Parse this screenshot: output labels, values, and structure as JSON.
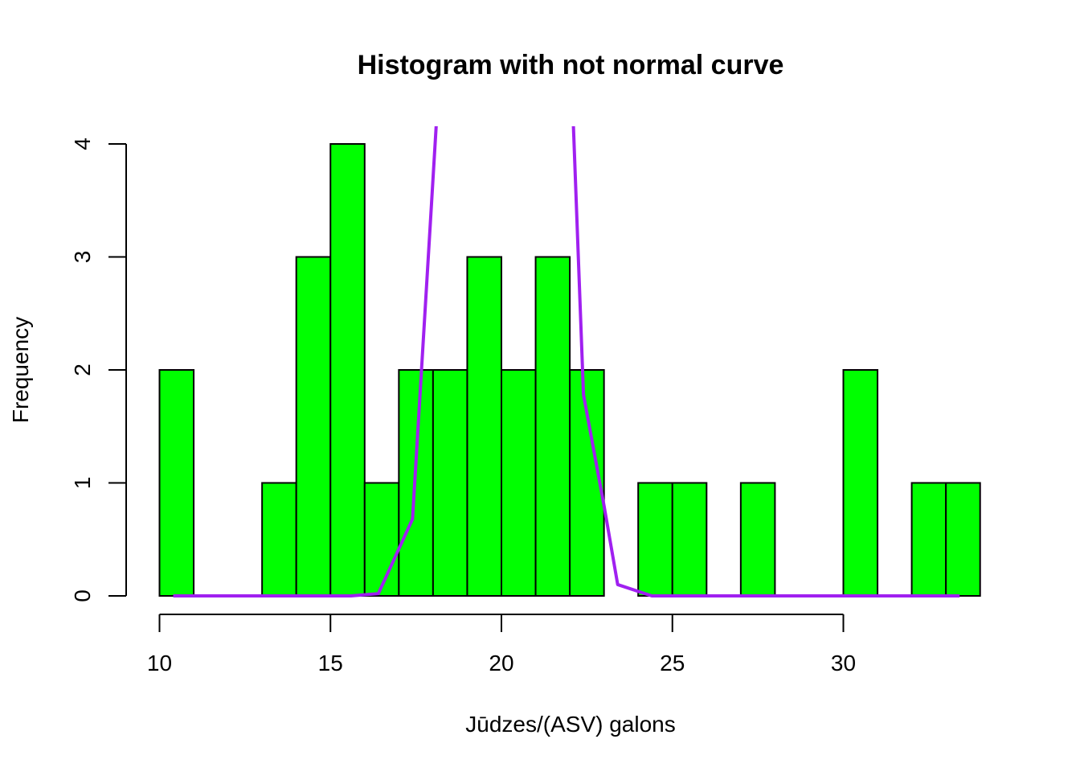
{
  "chart_data": {
    "type": "bar",
    "title": "Histogram with not normal curve",
    "xlabel": "Jūdzes/(ASV) galons",
    "ylabel": "Frequency",
    "x_ticks": [
      10,
      15,
      20,
      25,
      30
    ],
    "y_ticks": [
      0,
      1,
      2,
      3,
      4
    ],
    "xlim": [
      10,
      34
    ],
    "ylim": [
      0,
      4
    ],
    "bar_color": "#00ff00",
    "curve_color": "#a020f0",
    "grid": false,
    "bins": [
      {
        "x0": 10,
        "x1": 11,
        "count": 2
      },
      {
        "x0": 11,
        "x1": 12,
        "count": 0
      },
      {
        "x0": 12,
        "x1": 13,
        "count": 0
      },
      {
        "x0": 13,
        "x1": 14,
        "count": 1
      },
      {
        "x0": 14,
        "x1": 15,
        "count": 3
      },
      {
        "x0": 15,
        "x1": 16,
        "count": 4
      },
      {
        "x0": 16,
        "x1": 17,
        "count": 1
      },
      {
        "x0": 17,
        "x1": 18,
        "count": 2
      },
      {
        "x0": 18,
        "x1": 19,
        "count": 2
      },
      {
        "x0": 19,
        "x1": 20,
        "count": 3
      },
      {
        "x0": 20,
        "x1": 21,
        "count": 2
      },
      {
        "x0": 21,
        "x1": 22,
        "count": 3
      },
      {
        "x0": 22,
        "x1": 23,
        "count": 2
      },
      {
        "x0": 23,
        "x1": 24,
        "count": 0
      },
      {
        "x0": 24,
        "x1": 25,
        "count": 1
      },
      {
        "x0": 25,
        "x1": 26,
        "count": 1
      },
      {
        "x0": 26,
        "x1": 27,
        "count": 0
      },
      {
        "x0": 27,
        "x1": 28,
        "count": 1
      },
      {
        "x0": 28,
        "x1": 29,
        "count": 0
      },
      {
        "x0": 29,
        "x1": 30,
        "count": 0
      },
      {
        "x0": 30,
        "x1": 31,
        "count": 2
      },
      {
        "x0": 31,
        "x1": 32,
        "count": 0
      },
      {
        "x0": 32,
        "x1": 33,
        "count": 1
      },
      {
        "x0": 33,
        "x1": 34,
        "count": 1
      }
    ],
    "curve": {
      "x": [
        10.4,
        15.6,
        16.4,
        17.4,
        18.1,
        22.1,
        22.4,
        23.0,
        23.4,
        24.4,
        33.4
      ],
      "y": [
        0,
        0,
        0.02,
        0.68,
        4.2,
        4.2,
        1.78,
        0.8,
        0.1,
        0,
        0
      ]
    }
  }
}
